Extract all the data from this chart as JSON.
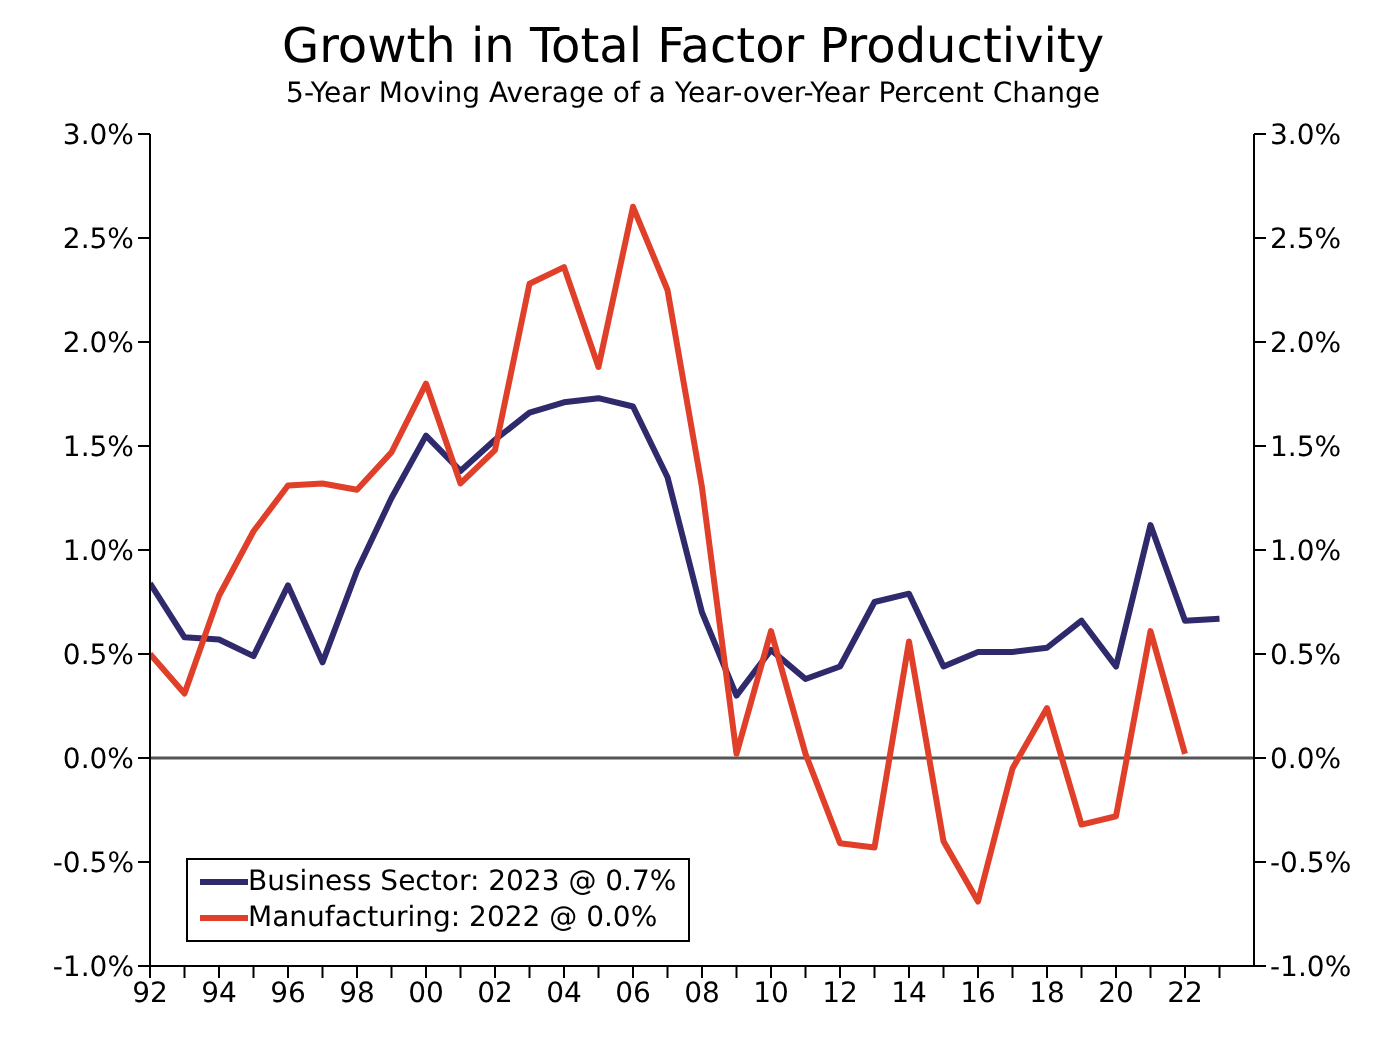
{
  "chart_data": {
    "type": "line",
    "title": "Growth in Total Factor Productivity",
    "subtitle": "5-Year Moving Average of a Year-over-Year Percent Change",
    "x": [
      1992,
      1993,
      1994,
      1995,
      1996,
      1997,
      1998,
      1999,
      2000,
      2001,
      2002,
      2003,
      2004,
      2005,
      2006,
      2007,
      2008,
      2009,
      2010,
      2011,
      2012,
      2013,
      2014,
      2015,
      2016,
      2017,
      2018,
      2019,
      2020,
      2021,
      2022,
      2023
    ],
    "series": [
      {
        "name": "Business Sector: 2023 @ 0.7%",
        "color": "#2e2a6b",
        "values": [
          0.84,
          0.58,
          0.57,
          0.49,
          0.83,
          0.46,
          0.9,
          1.25,
          1.55,
          1.38,
          1.53,
          1.66,
          1.71,
          1.73,
          1.69,
          1.35,
          0.7,
          0.3,
          0.52,
          0.38,
          0.44,
          0.75,
          0.79,
          0.44,
          0.51,
          0.51,
          0.53,
          0.66,
          0.44,
          1.12,
          0.66,
          0.67
        ]
      },
      {
        "name": "Manufacturing: 2022 @ 0.0%",
        "color": "#e0402a",
        "values": [
          0.5,
          0.31,
          0.78,
          1.09,
          1.31,
          1.32,
          1.29,
          1.47,
          1.8,
          1.32,
          1.48,
          2.28,
          2.36,
          1.88,
          2.65,
          2.25,
          1.3,
          0.02,
          0.61,
          0.02,
          -0.41,
          -0.43,
          0.56,
          -0.4,
          -0.69,
          -0.05,
          0.24,
          -0.32,
          -0.28,
          0.61,
          0.02,
          null
        ]
      }
    ],
    "xlim": [
      1992,
      2024
    ],
    "xticks": [
      {
        "value": 1992,
        "label": "92"
      },
      {
        "value": 1993,
        "label": null
      },
      {
        "value": 1994,
        "label": "94"
      },
      {
        "value": 1995,
        "label": null
      },
      {
        "value": 1996,
        "label": "96"
      },
      {
        "value": 1997,
        "label": null
      },
      {
        "value": 1998,
        "label": "98"
      },
      {
        "value": 1999,
        "label": null
      },
      {
        "value": 2000,
        "label": "00"
      },
      {
        "value": 2001,
        "label": null
      },
      {
        "value": 2002,
        "label": "02"
      },
      {
        "value": 2003,
        "label": null
      },
      {
        "value": 2004,
        "label": "04"
      },
      {
        "value": 2005,
        "label": null
      },
      {
        "value": 2006,
        "label": "06"
      },
      {
        "value": 2007,
        "label": null
      },
      {
        "value": 2008,
        "label": "08"
      },
      {
        "value": 2009,
        "label": null
      },
      {
        "value": 2010,
        "label": "10"
      },
      {
        "value": 2011,
        "label": null
      },
      {
        "value": 2012,
        "label": "12"
      },
      {
        "value": 2013,
        "label": null
      },
      {
        "value": 2014,
        "label": "14"
      },
      {
        "value": 2015,
        "label": null
      },
      {
        "value": 2016,
        "label": "16"
      },
      {
        "value": 2017,
        "label": null
      },
      {
        "value": 2018,
        "label": "18"
      },
      {
        "value": 2019,
        "label": null
      },
      {
        "value": 2020,
        "label": "20"
      },
      {
        "value": 2021,
        "label": null
      },
      {
        "value": 2022,
        "label": "22"
      },
      {
        "value": 2023,
        "label": null
      }
    ],
    "ylim": [
      -1,
      3
    ],
    "yticks": [
      {
        "value": -1,
        "label": "-1.0%"
      },
      {
        "value": -0.5,
        "label": "-0.5%"
      },
      {
        "value": 0,
        "label": "0.0%"
      },
      {
        "value": 0.5,
        "label": "0.5%"
      },
      {
        "value": 1,
        "label": "1.0%"
      },
      {
        "value": 1.5,
        "label": "1.5%"
      },
      {
        "value": 2,
        "label": "2.0%"
      },
      {
        "value": 2.5,
        "label": "2.5%"
      },
      {
        "value": 3,
        "label": "3.0%"
      }
    ],
    "y2lim": [
      -1,
      3
    ],
    "y2ticks": [
      {
        "value": -1,
        "label": "-1.0%"
      },
      {
        "value": -0.5,
        "label": "-0.5%"
      },
      {
        "value": 0,
        "label": "0.0%"
      },
      {
        "value": 0.5,
        "label": "0.5%"
      },
      {
        "value": 1,
        "label": "1.0%"
      },
      {
        "value": 1.5,
        "label": "1.5%"
      },
      {
        "value": 2,
        "label": "2.0%"
      },
      {
        "value": 2.5,
        "label": "2.5%"
      },
      {
        "value": 3,
        "label": "3.0%"
      }
    ],
    "ref_lines": [
      {
        "axis": "y",
        "value": 0,
        "color": "#555555"
      }
    ],
    "grid": false,
    "legend": "bottom left",
    "marker": "none",
    "line_style": "solid"
  }
}
